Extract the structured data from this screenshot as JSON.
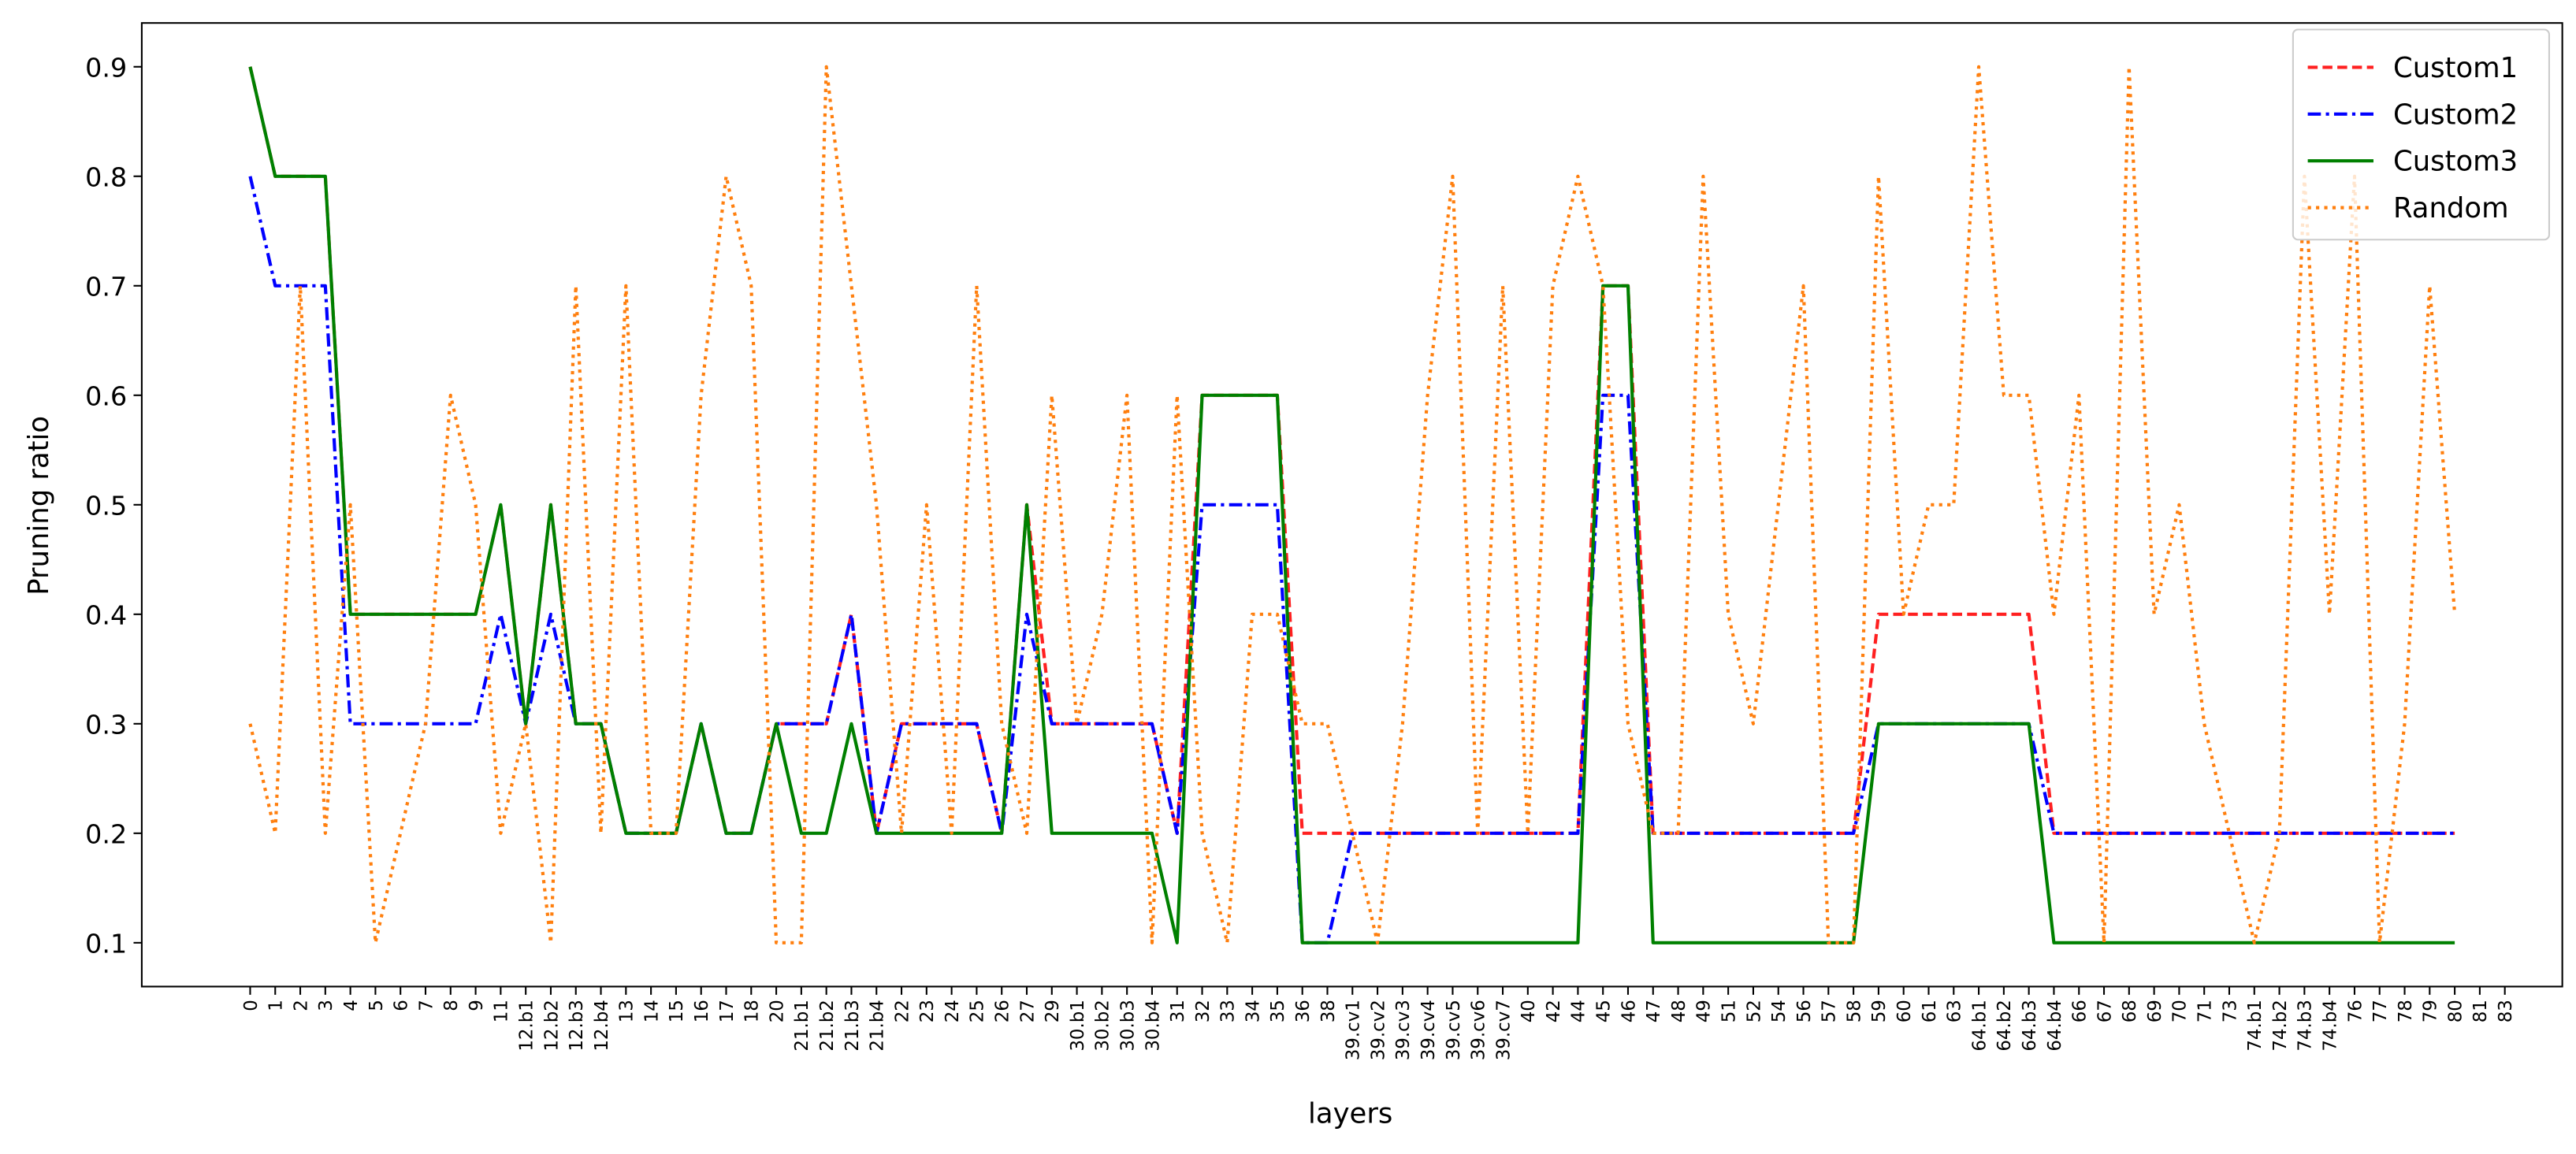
{
  "chart_data": {
    "type": "line",
    "xlabel": "layers",
    "ylabel": "Pruning ratio",
    "categories": [
      "0",
      "1",
      "2",
      "3",
      "4",
      "5",
      "6",
      "7",
      "8",
      "9",
      "11",
      "12.b1",
      "12.b2",
      "12.b3",
      "12.b4",
      "13",
      "14",
      "15",
      "16",
      "17",
      "18",
      "20",
      "21.b1",
      "21.b2",
      "21.b3",
      "21.b4",
      "22",
      "23",
      "24",
      "25",
      "26",
      "27",
      "29",
      "30.b1",
      "30.b2",
      "30.b3",
      "30.b4",
      "31",
      "32",
      "33",
      "34",
      "35",
      "36",
      "38",
      "39.cv1",
      "39.cv2",
      "39.cv3",
      "39.cv4",
      "39.cv5",
      "39.cv6",
      "39.cv7",
      "40",
      "42",
      "44",
      "45",
      "46",
      "47",
      "48",
      "49",
      "51",
      "52",
      "54",
      "56",
      "57",
      "58",
      "59",
      "60",
      "61",
      "63",
      "64.b1",
      "64.b2",
      "64.b3",
      "64.b4",
      "66",
      "67",
      "68",
      "69",
      "70",
      "71",
      "73",
      "74.b1",
      "74.b2",
      "74.b3",
      "74.b4",
      "76",
      "77",
      "78",
      "79",
      "80",
      "81",
      "83"
    ],
    "series": [
      {
        "name": "Custom1",
        "color": "#ff2020",
        "linestyle": "dashed",
        "values": [
          0.9,
          0.8,
          0.8,
          0.8,
          0.4,
          0.4,
          0.4,
          0.4,
          0.4,
          0.4,
          0.5,
          0.3,
          0.5,
          0.3,
          0.3,
          0.2,
          0.2,
          0.2,
          0.3,
          0.2,
          0.2,
          0.3,
          0.3,
          0.3,
          0.4,
          0.2,
          0.3,
          0.3,
          0.3,
          0.3,
          0.2,
          0.5,
          0.3,
          0.3,
          0.3,
          0.3,
          0.3,
          0.2,
          0.6,
          0.6,
          0.6,
          0.6,
          0.2,
          0.2,
          0.2,
          0.2,
          0.2,
          0.2,
          0.2,
          0.2,
          0.2,
          0.2,
          0.2,
          0.2,
          0.7,
          0.7,
          0.2,
          0.2,
          0.2,
          0.2,
          0.2,
          0.2,
          0.2,
          0.2,
          0.2,
          0.4,
          0.4,
          0.4,
          0.4,
          0.4,
          0.4,
          0.4,
          0.2,
          0.2,
          0.2,
          0.2,
          0.2,
          0.2,
          0.2,
          0.2,
          0.2,
          0.2,
          0.2,
          0.2,
          0.2,
          0.2,
          0.2,
          0.2,
          0.2,
          null,
          null
        ]
      },
      {
        "name": "Custom2",
        "color": "#0000ff",
        "linestyle": "dashdot",
        "values": [
          0.8,
          0.7,
          0.7,
          0.7,
          0.3,
          0.3,
          0.3,
          0.3,
          0.3,
          0.3,
          0.4,
          0.3,
          0.4,
          0.3,
          0.3,
          0.2,
          0.2,
          0.2,
          0.3,
          0.2,
          0.2,
          0.3,
          0.3,
          0.3,
          0.4,
          0.2,
          0.3,
          0.3,
          0.3,
          0.3,
          0.2,
          0.4,
          0.3,
          0.3,
          0.3,
          0.3,
          0.3,
          0.2,
          0.5,
          0.5,
          0.5,
          0.5,
          0.1,
          0.1,
          0.2,
          0.2,
          0.2,
          0.2,
          0.2,
          0.2,
          0.2,
          0.2,
          0.2,
          0.2,
          0.6,
          0.6,
          0.2,
          0.2,
          0.2,
          0.2,
          0.2,
          0.2,
          0.2,
          0.2,
          0.2,
          0.3,
          0.3,
          0.3,
          0.3,
          0.3,
          0.3,
          0.3,
          0.2,
          0.2,
          0.2,
          0.2,
          0.2,
          0.2,
          0.2,
          0.2,
          0.2,
          0.2,
          0.2,
          0.2,
          0.2,
          0.2,
          0.2,
          0.2,
          0.2,
          null,
          null
        ]
      },
      {
        "name": "Custom3",
        "color": "#008000",
        "linestyle": "solid",
        "values": [
          0.9,
          0.8,
          0.8,
          0.8,
          0.4,
          0.4,
          0.4,
          0.4,
          0.4,
          0.4,
          0.5,
          0.3,
          0.5,
          0.3,
          0.3,
          0.2,
          0.2,
          0.2,
          0.3,
          0.2,
          0.2,
          0.3,
          0.2,
          0.2,
          0.3,
          0.2,
          0.2,
          0.2,
          0.2,
          0.2,
          0.2,
          0.5,
          0.2,
          0.2,
          0.2,
          0.2,
          0.2,
          0.1,
          0.6,
          0.6,
          0.6,
          0.6,
          0.1,
          0.1,
          0.1,
          0.1,
          0.1,
          0.1,
          0.1,
          0.1,
          0.1,
          0.1,
          0.1,
          0.1,
          0.7,
          0.7,
          0.1,
          0.1,
          0.1,
          0.1,
          0.1,
          0.1,
          0.1,
          0.1,
          0.1,
          0.3,
          0.3,
          0.3,
          0.3,
          0.3,
          0.3,
          0.3,
          0.1,
          0.1,
          0.1,
          0.1,
          0.1,
          0.1,
          0.1,
          0.1,
          0.1,
          0.1,
          0.1,
          0.1,
          0.1,
          0.1,
          0.1,
          0.1,
          0.1,
          null,
          null
        ]
      },
      {
        "name": "Random",
        "color": "#ff7f0e",
        "linestyle": "dotted",
        "values": [
          0.3,
          0.2,
          0.7,
          0.2,
          0.5,
          0.1,
          0.2,
          0.3,
          0.6,
          0.5,
          0.2,
          0.3,
          0.1,
          0.7,
          0.2,
          0.7,
          0.2,
          0.2,
          0.6,
          0.8,
          0.7,
          0.1,
          0.1,
          0.9,
          0.7,
          0.5,
          0.2,
          0.5,
          0.2,
          0.7,
          0.3,
          0.2,
          0.6,
          0.3,
          0.4,
          0.6,
          0.1,
          0.6,
          0.2,
          0.1,
          0.4,
          0.4,
          0.3,
          0.3,
          0.2,
          0.1,
          0.3,
          0.6,
          0.8,
          0.2,
          0.7,
          0.2,
          0.7,
          0.8,
          0.7,
          0.3,
          0.2,
          0.2,
          0.8,
          0.4,
          0.3,
          0.5,
          0.7,
          0.1,
          0.1,
          0.8,
          0.4,
          0.5,
          0.5,
          0.9,
          0.6,
          0.6,
          0.4,
          0.6,
          0.1,
          0.9,
          0.4,
          0.5,
          0.3,
          0.2,
          0.1,
          0.2,
          0.8,
          0.4,
          0.8,
          0.1,
          0.3,
          0.7,
          0.4,
          null,
          null
        ]
      }
    ],
    "ylim": [
      0.06,
      0.94
    ],
    "yticks": [
      0.1,
      0.2,
      0.3,
      0.4,
      0.5,
      0.6,
      0.7,
      0.8,
      0.9
    ],
    "legend": "upper right",
    "grid": false
  }
}
